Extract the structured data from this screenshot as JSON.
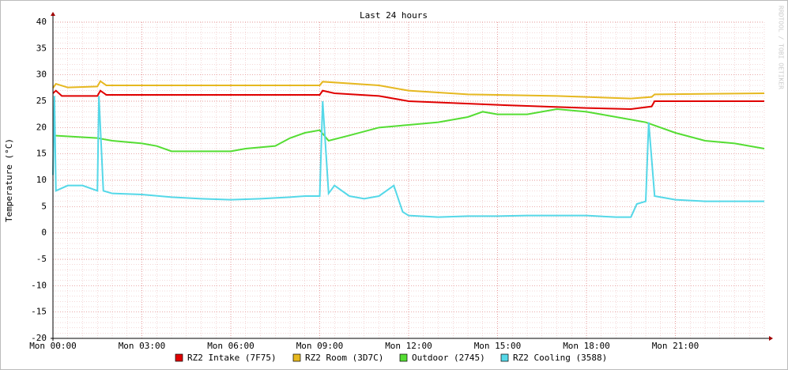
{
  "chart_data": {
    "type": "line",
    "title": "Last 24 hours",
    "y_label": "Temperature (°C)",
    "watermark": "RRDTOOL / TOBI OETIKER",
    "xlim": [
      0,
      24
    ],
    "xticks": [
      {
        "value": 0,
        "label": "Mon 00:00"
      },
      {
        "value": 3,
        "label": "Mon 03:00"
      },
      {
        "value": 6,
        "label": "Mon 06:00"
      },
      {
        "value": 9,
        "label": "Mon 09:00"
      },
      {
        "value": 12,
        "label": "Mon 12:00"
      },
      {
        "value": 15,
        "label": "Mon 15:00"
      },
      {
        "value": 18,
        "label": "Mon 18:00"
      },
      {
        "value": 21,
        "label": "Mon 21:00"
      }
    ],
    "ylim": [
      -20,
      40
    ],
    "yticks": [
      -20,
      -15,
      -10,
      -5,
      0,
      5,
      10,
      15,
      20,
      25,
      30,
      35,
      40
    ],
    "grid": true,
    "legend": "bottom",
    "series": [
      {
        "name": "RZ2 Intake (7F75)",
        "color": "#e00000",
        "x": [
          0,
          0.1,
          0.3,
          1.5,
          1.6,
          1.8,
          9,
          9.1,
          9.5,
          11,
          12,
          15,
          18,
          19.5,
          20.2,
          20.3,
          24
        ],
        "values": [
          26.5,
          27,
          26,
          26,
          27,
          26.2,
          26.2,
          27,
          26.5,
          26,
          25,
          24.3,
          23.7,
          23.5,
          24,
          25,
          25
        ]
      },
      {
        "name": "RZ2 Room (3D7C)",
        "color": "#e6b820",
        "x": [
          0,
          0.1,
          0.5,
          1.5,
          1.6,
          1.8,
          9,
          9.1,
          11,
          12,
          14,
          17,
          19.5,
          20.2,
          20.3,
          24
        ],
        "values": [
          27.5,
          28.3,
          27.6,
          27.8,
          28.8,
          28,
          28,
          28.7,
          28,
          27,
          26.3,
          26,
          25.5,
          25.8,
          26.3,
          26.5
        ]
      },
      {
        "name": "Outdoor (2745)",
        "color": "#55dd33",
        "x": [
          0,
          1.5,
          2,
          3,
          3.5,
          4,
          5,
          6,
          6.5,
          7.5,
          8,
          8.5,
          9,
          9.3,
          10,
          11,
          12,
          13,
          14,
          14.5,
          15,
          16,
          17,
          18,
          19,
          20,
          21,
          22,
          23,
          24
        ],
        "values": [
          18.5,
          18,
          17.5,
          17,
          16.5,
          15.5,
          15.5,
          15.5,
          16,
          16.5,
          18,
          19,
          19.5,
          17.5,
          18.5,
          20,
          20.5,
          21,
          22,
          23,
          22.5,
          22.5,
          23.5,
          23,
          22,
          21,
          19,
          17.5,
          17,
          16
        ]
      },
      {
        "name": "RZ2 Cooling (3588)",
        "color": "#55d8e8",
        "x": [
          0,
          0.05,
          0.1,
          0.5,
          1,
          1.5,
          1.55,
          1.7,
          2,
          3,
          4,
          5,
          6,
          7,
          8,
          8.5,
          9,
          9.1,
          9.3,
          9.5,
          10,
          10.5,
          11,
          11.5,
          11.8,
          12,
          13,
          14,
          15,
          16,
          17,
          18,
          19,
          19.5,
          19.7,
          20,
          20.1,
          20.3,
          21,
          22,
          23,
          24
        ],
        "values": [
          11,
          26,
          8,
          9,
          9,
          8,
          26,
          8,
          7.5,
          7.3,
          6.8,
          6.5,
          6.3,
          6.5,
          6.8,
          7,
          7,
          25,
          7.5,
          9,
          7,
          6.5,
          7,
          9,
          4,
          3.3,
          3,
          3.2,
          3.2,
          3.3,
          3.3,
          3.3,
          3,
          3,
          5.5,
          6,
          21,
          7,
          6.3,
          6,
          6,
          6
        ]
      }
    ]
  }
}
